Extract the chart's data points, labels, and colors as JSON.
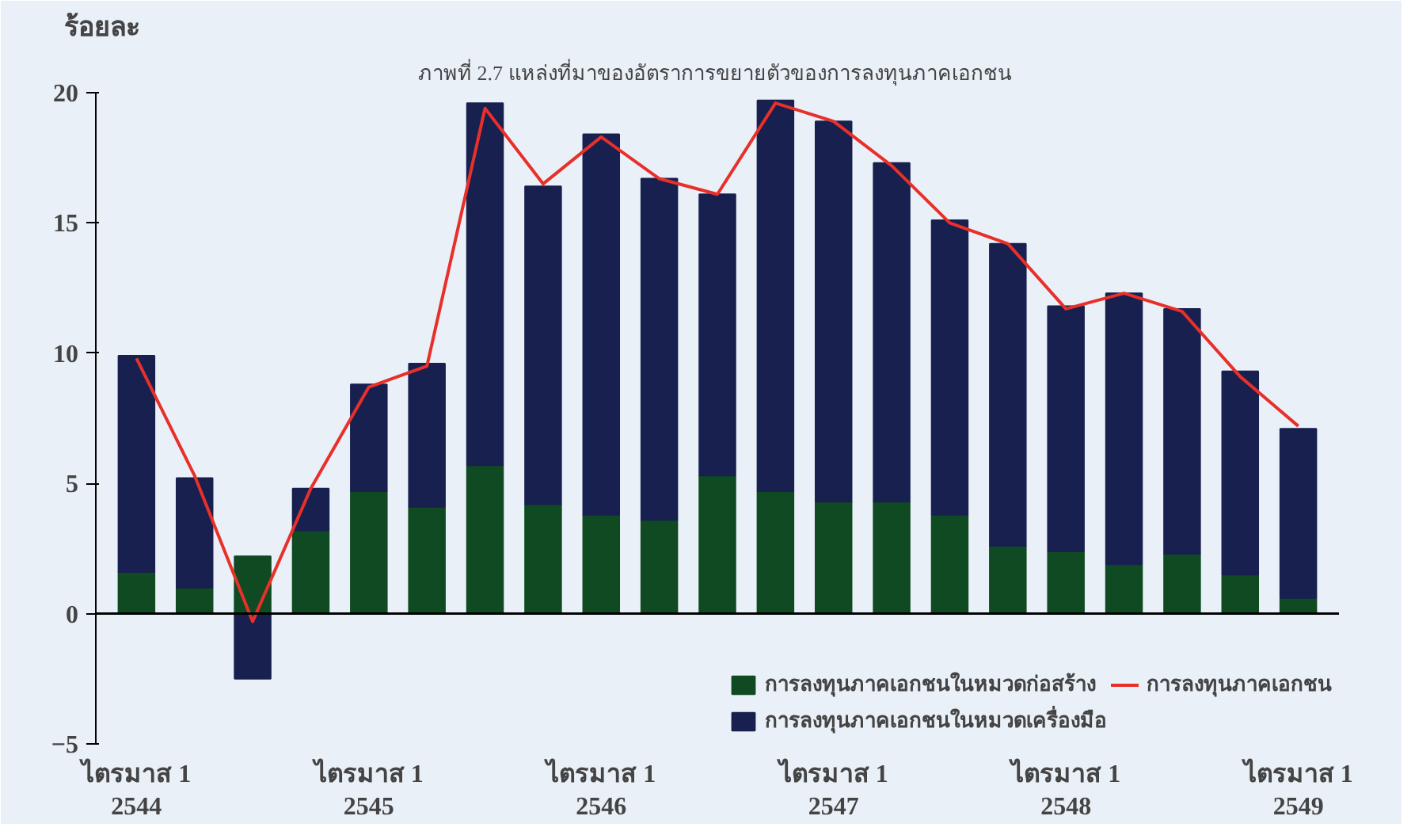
{
  "chart_data": {
    "type": "bar",
    "stacked": true,
    "title": "ภาพที่ 2.7  แหล่งที่มาของอัตราการขยายตัวของการลงทุนภาคเอกชน",
    "ylabel": "ร้อยละ",
    "categories": [
      "ไตรมาส 1\n2544",
      null,
      null,
      null,
      "ไตรมาส 1\n2545",
      null,
      null,
      null,
      "ไตรมาส 1\n2546",
      null,
      null,
      null,
      "ไตรมาส 1\n2547",
      null,
      null,
      null,
      "ไตรมาส 1\n2548",
      null,
      null,
      null,
      "ไตรมาส 1\n2549"
    ],
    "series": [
      {
        "name": "การลงทุนภาคเอกชนในหมวดก่อสร้าง",
        "color": "#0f4a22",
        "values": [
          1.6,
          1.0,
          2.2,
          3.2,
          4.7,
          4.1,
          5.7,
          4.2,
          3.8,
          3.6,
          5.3,
          4.7,
          4.3,
          4.3,
          3.8,
          2.6,
          2.4,
          1.9,
          2.3,
          1.5,
          0.6
        ]
      },
      {
        "name": "การลงทุนภาคเอกชนในหมวดเครื่องมือ",
        "color": "#17204f",
        "values": [
          8.3,
          4.2,
          -2.5,
          1.6,
          4.1,
          5.5,
          13.9,
          12.2,
          14.6,
          13.1,
          10.8,
          15.0,
          14.6,
          13.0,
          11.3,
          11.6,
          9.4,
          10.4,
          9.4,
          7.8,
          6.5
        ]
      },
      {
        "name": "การลงทุนภาคเอกชน",
        "type": "line",
        "color": "#e8302a",
        "values": [
          9.8,
          5.3,
          -0.3,
          4.8,
          8.7,
          9.5,
          19.4,
          16.5,
          18.3,
          16.7,
          16.1,
          19.6,
          18.9,
          17.2,
          15.0,
          14.2,
          11.7,
          12.3,
          11.6,
          9.1,
          7.2
        ]
      }
    ],
    "ylim": [
      -5,
      20
    ],
    "yticks": [
      -5,
      0,
      5,
      10,
      15,
      20
    ],
    "grid": false,
    "legend": "bottom right",
    "ref_lines": [
      {
        "axis": "y",
        "value": 0,
        "color": "#000000"
      }
    ]
  }
}
